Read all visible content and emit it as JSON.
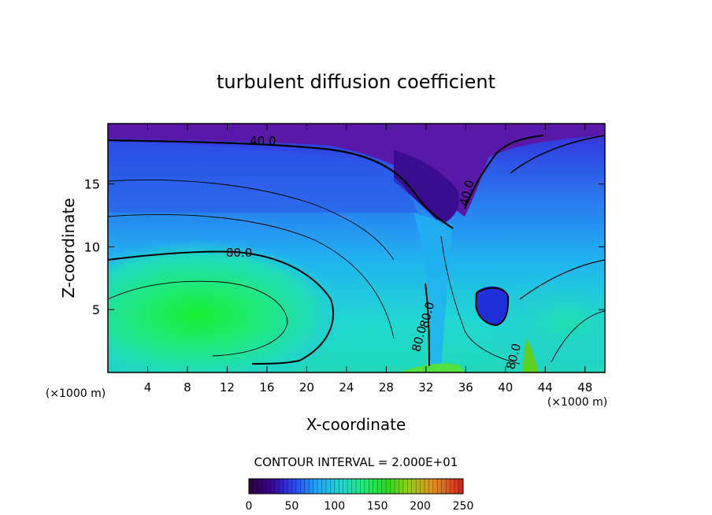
{
  "chart_data": {
    "type": "heatmap",
    "title": "turbulent diffusion coefficient",
    "xlabel": "X-coordinate",
    "ylabel": "Z-coordinate",
    "x_unit_left": "(×1000 m)",
    "x_unit_right": "(×1000 m)",
    "xlim": [
      0,
      50
    ],
    "ylim": [
      0,
      19.8
    ],
    "x_ticks": [
      4,
      8,
      12,
      16,
      20,
      24,
      28,
      32,
      36,
      40,
      44,
      48
    ],
    "y_ticks": [
      5,
      10,
      15
    ],
    "contour_interval_text": "CONTOUR INTERVAL = 2.000E+01",
    "contour_labels": [
      {
        "text": "40.0",
        "x": 15.6,
        "z": 18.1
      },
      {
        "text": "40.0",
        "x": 36.5,
        "z": 14.2
      },
      {
        "text": "80.0",
        "x": 13.2,
        "z": 9.2
      },
      {
        "text": "80.0",
        "x": 32.5,
        "z": 4.5
      },
      {
        "text": "80.0",
        "x": 31.7,
        "z": 2.6
      },
      {
        "text": "80.0",
        "x": 41.2,
        "z": 1.2
      }
    ],
    "colorbar": {
      "range": [
        0,
        250
      ],
      "ticks": [
        0,
        50,
        100,
        150,
        200,
        250
      ],
      "colors": [
        "#2a003a",
        "#3a0090",
        "#2a40f0",
        "#20a8f8",
        "#20d8c8",
        "#20ec70",
        "#28d828",
        "#90d010",
        "#e09020",
        "#d02020"
      ]
    },
    "field_description_colors": {
      "top_band": "#6a18a8",
      "upper_blue": "#2a7cf0",
      "mid_cyan": "#20c8e8",
      "low_green": "#20f060"
    }
  }
}
